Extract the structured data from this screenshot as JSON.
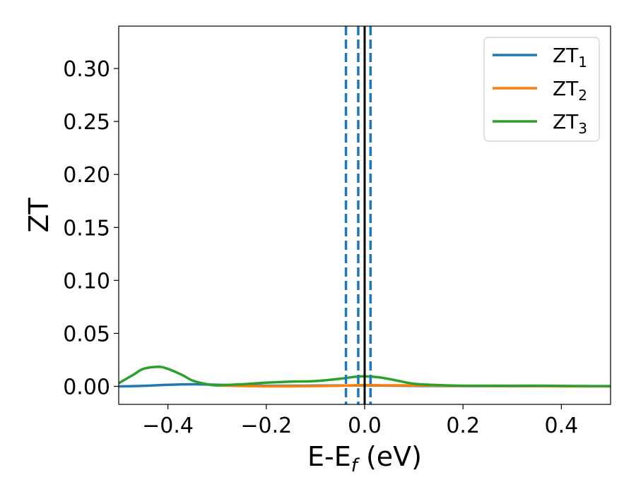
{
  "chart_data": {
    "type": "line",
    "xlabel_main": "E-E",
    "xlabel_sub": "f",
    "xlabel_unit": " (eV)",
    "ylabel": "ZT",
    "xlim": [
      -0.5,
      0.5
    ],
    "ylim": [
      -0.017,
      0.34
    ],
    "xticks": [
      -0.4,
      -0.2,
      0.0,
      0.2,
      0.4
    ],
    "xtick_labels": [
      "−0.4",
      "−0.2",
      "0.0",
      "0.2",
      "0.4"
    ],
    "yticks": [
      0.0,
      0.05,
      0.1,
      0.15,
      0.2,
      0.25,
      0.3
    ],
    "ytick_labels": [
      "0.00",
      "0.05",
      "0.10",
      "0.15",
      "0.20",
      "0.25",
      "0.30"
    ],
    "grid": false,
    "legend_position": "top-right",
    "colors": {
      "zt1": "#1f77b4",
      "zt2": "#ff7f0e",
      "zt3": "#2ca02c",
      "solid_vline": "#000000",
      "dashed_vline": "#1f77b4"
    },
    "vlines": [
      {
        "x": 0.0,
        "style": "solid",
        "color": "#000000"
      },
      {
        "x": -0.038,
        "style": "dashed",
        "color": "#1f77b4"
      },
      {
        "x": -0.013,
        "style": "dashed",
        "color": "#1f77b4"
      },
      {
        "x": 0.012,
        "style": "dashed",
        "color": "#1f77b4"
      }
    ],
    "series": [
      {
        "name": "ZT",
        "sub": "1",
        "color": "#1f77b4",
        "x": [
          -0.5,
          -0.45,
          -0.4,
          -0.35,
          -0.3,
          -0.25,
          -0.2,
          -0.15,
          -0.1,
          -0.05,
          0.0,
          0.05,
          0.1,
          0.15,
          0.2,
          0.25,
          0.3,
          0.35,
          0.4,
          0.45,
          0.5
        ],
        "y": [
          0.0,
          0.0005,
          0.0015,
          0.002,
          0.0015,
          0.001,
          0.0006,
          0.0006,
          0.0007,
          0.0008,
          0.0009,
          0.0007,
          0.0005,
          0.0003,
          0.0003,
          0.0003,
          0.0002,
          0.0002,
          0.0002,
          0.0001,
          0.0001
        ]
      },
      {
        "name": "ZT",
        "sub": "2",
        "color": "#ff7f0e",
        "x": [
          -0.3,
          -0.25,
          -0.2,
          -0.15,
          -0.1,
          -0.05,
          0.0,
          0.05,
          0.1,
          0.15,
          0.2,
          0.25,
          0.3,
          0.35,
          0.4,
          0.45,
          0.5
        ],
        "y": [
          0.0008,
          0.0003,
          0.0001,
          0.0001,
          0.0002,
          0.0006,
          0.0012,
          0.001,
          0.0009,
          0.0006,
          0.0004,
          0.0003,
          0.0002,
          0.0002,
          0.0001,
          0.0001,
          0.0001
        ]
      },
      {
        "name": "ZT",
        "sub": "3",
        "color": "#2ca02c",
        "x": [
          -0.5,
          -0.47,
          -0.45,
          -0.42,
          -0.4,
          -0.37,
          -0.35,
          -0.32,
          -0.3,
          -0.25,
          -0.2,
          -0.15,
          -0.1,
          -0.05,
          -0.02,
          0.0,
          0.03,
          0.06,
          0.1,
          0.15,
          0.2,
          0.25,
          0.3,
          0.35,
          0.4,
          0.45,
          0.5
        ],
        "y": [
          0.003,
          0.011,
          0.0165,
          0.0185,
          0.0165,
          0.0105,
          0.0055,
          0.002,
          0.001,
          0.002,
          0.0035,
          0.0045,
          0.005,
          0.0072,
          0.009,
          0.0095,
          0.0085,
          0.006,
          0.0025,
          0.0012,
          0.0006,
          0.0006,
          0.0005,
          0.0006,
          0.0004,
          0.0003,
          0.0002
        ]
      }
    ]
  }
}
